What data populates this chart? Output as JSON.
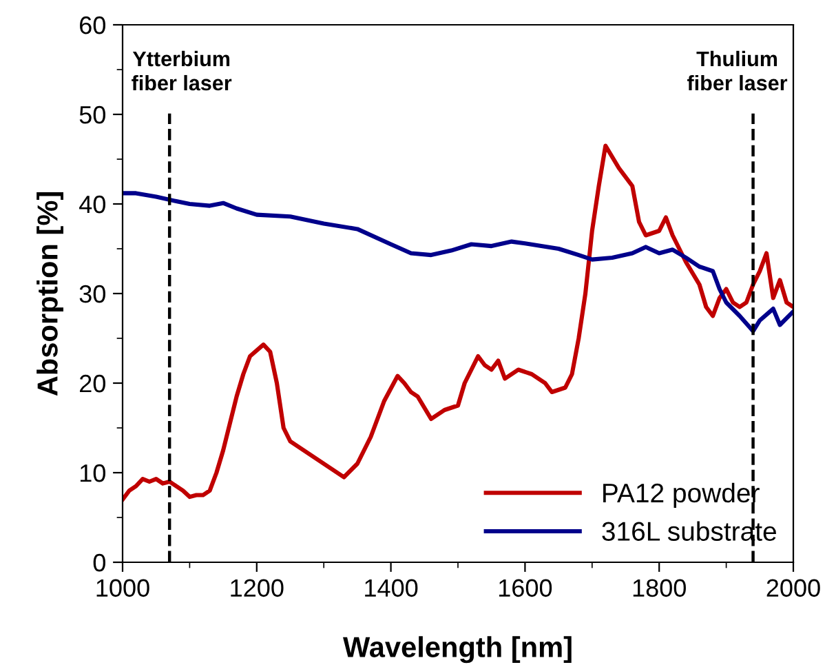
{
  "chart_data": {
    "type": "line",
    "xlabel": "Wavelength [nm]",
    "ylabel": "Absorption [%]",
    "xlim": [
      1000,
      2000
    ],
    "xticks": [
      1000,
      1200,
      1400,
      1600,
      1800,
      2000
    ],
    "ylim": [
      0,
      60
    ],
    "yticks": [
      0,
      10,
      20,
      30,
      40,
      50,
      60
    ],
    "grid": false,
    "legend": "bottom right",
    "marker": "none",
    "line_style": "solid",
    "series": [
      {
        "name": "PA12 powder",
        "color": "#c00000",
        "x": [
          1000,
          1010,
          1020,
          1030,
          1040,
          1050,
          1060,
          1070,
          1080,
          1090,
          1100,
          1110,
          1120,
          1130,
          1140,
          1150,
          1160,
          1170,
          1180,
          1190,
          1210,
          1220,
          1230,
          1240,
          1250,
          1270,
          1290,
          1310,
          1330,
          1350,
          1370,
          1390,
          1410,
          1420,
          1430,
          1440,
          1460,
          1480,
          1500,
          1510,
          1530,
          1540,
          1550,
          1560,
          1570,
          1590,
          1610,
          1630,
          1640,
          1660,
          1670,
          1680,
          1690,
          1700,
          1710,
          1720,
          1740,
          1760,
          1770,
          1780,
          1800,
          1810,
          1820,
          1840,
          1860,
          1870,
          1880,
          1890,
          1900,
          1910,
          1920,
          1930,
          1940,
          1950,
          1960,
          1970,
          1980,
          1990,
          2000
        ],
        "values": [
          7,
          8,
          8.5,
          9.3,
          9,
          9.3,
          8.8,
          9,
          8.5,
          8,
          7.3,
          7.5,
          7.5,
          8,
          10,
          12.5,
          15.5,
          18.5,
          21,
          23,
          24.3,
          23.5,
          20,
          15,
          13.5,
          12.5,
          11.5,
          10.5,
          9.5,
          11,
          14,
          18,
          20.8,
          20,
          19,
          18.5,
          16,
          17,
          17.5,
          20,
          23,
          22,
          21.5,
          22.5,
          20.5,
          21.5,
          21,
          20,
          19,
          19.5,
          21,
          25,
          30,
          37,
          42,
          46.5,
          44,
          42,
          38,
          36.5,
          37,
          38.5,
          36.5,
          33.5,
          31,
          28.5,
          27.5,
          29.5,
          30.5,
          29,
          28.5,
          29,
          31,
          32.5,
          34.5,
          29.5,
          31.5,
          29,
          28.5
        ]
      },
      {
        "name": "316L substrate",
        "color": "#00008b",
        "x": [
          1000,
          1020,
          1050,
          1080,
          1100,
          1130,
          1150,
          1170,
          1200,
          1250,
          1300,
          1350,
          1400,
          1430,
          1460,
          1490,
          1520,
          1550,
          1580,
          1600,
          1650,
          1680,
          1700,
          1730,
          1760,
          1780,
          1800,
          1820,
          1840,
          1860,
          1880,
          1890,
          1900,
          1920,
          1940,
          1950,
          1970,
          1980,
          2000
        ],
        "values": [
          41.2,
          41.2,
          40.8,
          40.3,
          40,
          39.8,
          40.1,
          39.5,
          38.8,
          38.6,
          37.8,
          37.2,
          35.5,
          34.5,
          34.3,
          34.8,
          35.5,
          35.3,
          35.8,
          35.6,
          35,
          34.3,
          33.8,
          34,
          34.5,
          35.2,
          34.5,
          34.9,
          34,
          33,
          32.5,
          30.5,
          29,
          27.5,
          25.8,
          27,
          28.3,
          26.5,
          28
        ]
      }
    ],
    "ref_lines": [
      {
        "axis": "x",
        "value": 1070,
        "label": "Ytterbium\nfiber laser",
        "color": "#000000",
        "line_style": "dashed"
      },
      {
        "axis": "x",
        "value": 1940,
        "label": "Thulium\nfiber laser",
        "color": "#000000",
        "line_style": "dashed"
      }
    ]
  }
}
